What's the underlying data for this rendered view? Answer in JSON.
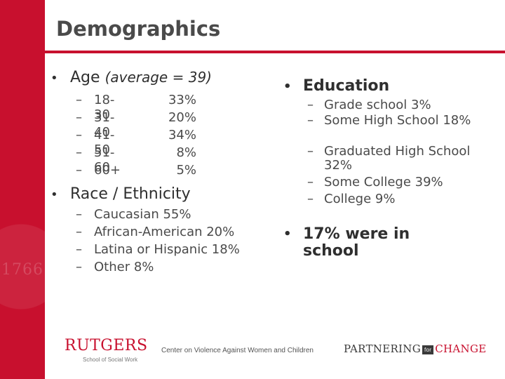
{
  "slide": {
    "title": "Demographics",
    "seal_year": "1766"
  },
  "age": {
    "label": "Age",
    "label_detail": "(average = 39)",
    "rows": [
      {
        "range": "18-30",
        "pct": "33%"
      },
      {
        "range": "31-40",
        "pct": "20%"
      },
      {
        "range": "41-50",
        "pct": "34%"
      },
      {
        "range": "51-60",
        "pct": "8%"
      },
      {
        "range": "60+",
        "pct": "5%"
      }
    ]
  },
  "race": {
    "label": "Race / Ethnicity",
    "items": [
      "Caucasian 55%",
      "African-American 20%",
      "Latina or Hispanic 18%",
      "Other 8%"
    ]
  },
  "education": {
    "label": "Education",
    "items": [
      "Grade school 3%",
      "Some High School 18%",
      "Graduated High School 32%",
      "Some College 39%",
      "College 9%"
    ]
  },
  "school": {
    "label": "17% were in school"
  },
  "footer": {
    "rutgers": "RUTGERS",
    "rutgers_sub": "School of Social Work",
    "center": "Center on Violence Against Women and Children",
    "ptc_left": "PARTNERING",
    "ptc_for": "for",
    "ptc_right": "CHANGE"
  },
  "colors": {
    "accent": "#c8102e",
    "text": "#4a4a4a"
  }
}
